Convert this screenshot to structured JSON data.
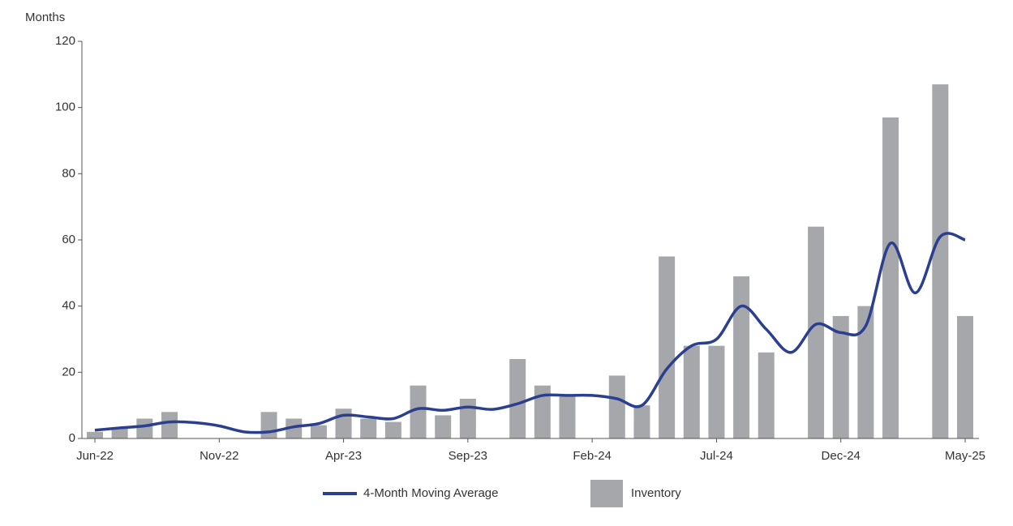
{
  "chart_data": {
    "type": "bar+line",
    "y_label": "Months",
    "categories": [
      "Jun-22",
      null,
      null,
      null,
      null,
      "Nov-22",
      null,
      null,
      null,
      null,
      "Apr-23",
      null,
      null,
      null,
      null,
      "Sep-23",
      null,
      null,
      null,
      null,
      "Feb-24",
      null,
      null,
      null,
      null,
      "Jul-24",
      null,
      null,
      null,
      null,
      "Dec-24",
      null,
      null,
      null,
      null,
      "May-25"
    ],
    "series": [
      {
        "name": "4-Month Moving Average",
        "type": "line",
        "color": "#2a3f8f",
        "values": [
          2.5,
          3.2,
          3.8,
          5,
          4.8,
          3.8,
          2,
          2,
          3.5,
          4.5,
          7,
          6.5,
          6,
          9,
          8.5,
          9.5,
          8.8,
          10.5,
          13,
          13,
          13,
          12,
          10,
          21,
          28,
          30,
          40,
          33,
          26,
          34.5,
          32,
          34,
          59,
          44,
          61,
          60
        ]
      },
      {
        "name": "Inventory",
        "type": "bar",
        "color": "#a6a7ab",
        "values": [
          2,
          3,
          6,
          8,
          0,
          0,
          0,
          8,
          6,
          4,
          9,
          6,
          5,
          16,
          7,
          12,
          0,
          24,
          16,
          13,
          0,
          19,
          10,
          55,
          28,
          28,
          49,
          26,
          0,
          64,
          37,
          40,
          97,
          0,
          107,
          37
        ]
      }
    ],
    "ylim": [
      0,
      120
    ],
    "yticks": [
      0,
      20,
      40,
      60,
      80,
      100,
      120
    ],
    "grid": false
  }
}
